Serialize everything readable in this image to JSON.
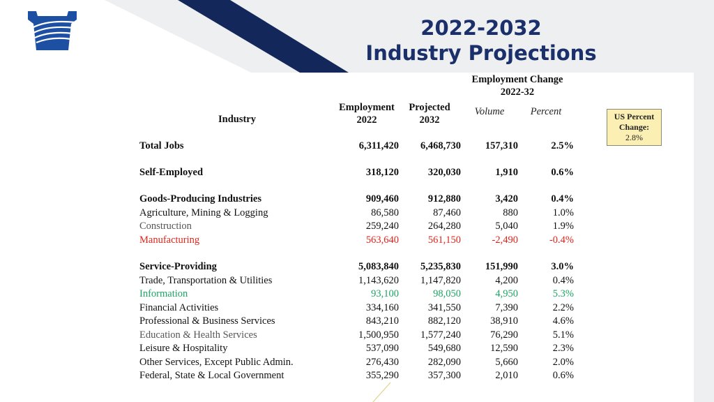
{
  "title_line1": "2022-2032",
  "title_line2": "Industry Projections",
  "headers": {
    "industry": "Industry",
    "employment_line1": "Employment",
    "employment_line2": "2022",
    "projected_line1": "Projected",
    "projected_line2": "2032",
    "change_line1": "Employment Change",
    "change_line2": "2022-32",
    "volume": "Volume",
    "percent": "Percent"
  },
  "us_box": {
    "line1": "US Percent",
    "line2": "Change:",
    "value": "2.8%"
  },
  "rows": [
    {
      "label": "Total Jobs",
      "emp2022": "6,311,420",
      "proj2032": "6,468,730",
      "volume": "157,310",
      "percent": "2.5%"
    },
    {
      "label": "Self-Employed",
      "emp2022": "318,120",
      "proj2032": "320,030",
      "volume": "1,910",
      "percent": "0.6%"
    },
    {
      "label": "Goods-Producing Industries",
      "emp2022": "909,460",
      "proj2032": "912,880",
      "volume": "3,420",
      "percent": "0.4%"
    },
    {
      "label": "Agriculture, Mining & Logging",
      "emp2022": "86,580",
      "proj2032": "87,460",
      "volume": "880",
      "percent": "1.0%"
    },
    {
      "label": "Construction",
      "emp2022": "259,240",
      "proj2032": "264,280",
      "volume": "5,040",
      "percent": "1.9%"
    },
    {
      "label": "Manufacturing",
      "emp2022": "563,640",
      "proj2032": "561,150",
      "volume": "-2,490",
      "percent": "-0.4%"
    },
    {
      "label": "Service-Providing",
      "emp2022": "5,083,840",
      "proj2032": "5,235,830",
      "volume": "151,990",
      "percent": "3.0%"
    },
    {
      "label": "Trade, Transportation & Utilities",
      "emp2022": "1,143,620",
      "proj2032": "1,147,820",
      "volume": "4,200",
      "percent": "0.4%"
    },
    {
      "label": "Information",
      "emp2022": "93,100",
      "proj2032": "98,050",
      "volume": "4,950",
      "percent": "5.3%"
    },
    {
      "label": "Financial Activities",
      "emp2022": "334,160",
      "proj2032": "341,550",
      "volume": "7,390",
      "percent": "2.2%"
    },
    {
      "label": "Professional & Business Services",
      "emp2022": "843,210",
      "proj2032": "882,120",
      "volume": "38,910",
      "percent": "4.6%"
    },
    {
      "label": "Education & Health Services",
      "emp2022": "1,500,950",
      "proj2032": "1,577,240",
      "volume": "76,290",
      "percent": "5.1%"
    },
    {
      "label": "Leisure & Hospitality",
      "emp2022": "537,090",
      "proj2032": "549,680",
      "volume": "12,590",
      "percent": "2.3%"
    },
    {
      "label": "Other Services, Except Public Admin.",
      "emp2022": "276,430",
      "proj2032": "282,090",
      "volume": "5,660",
      "percent": "2.0%"
    },
    {
      "label": "Federal, State & Local Government",
      "emp2022": "355,290",
      "proj2032": "357,300",
      "volume": "2,010",
      "percent": "0.6%"
    }
  ]
}
